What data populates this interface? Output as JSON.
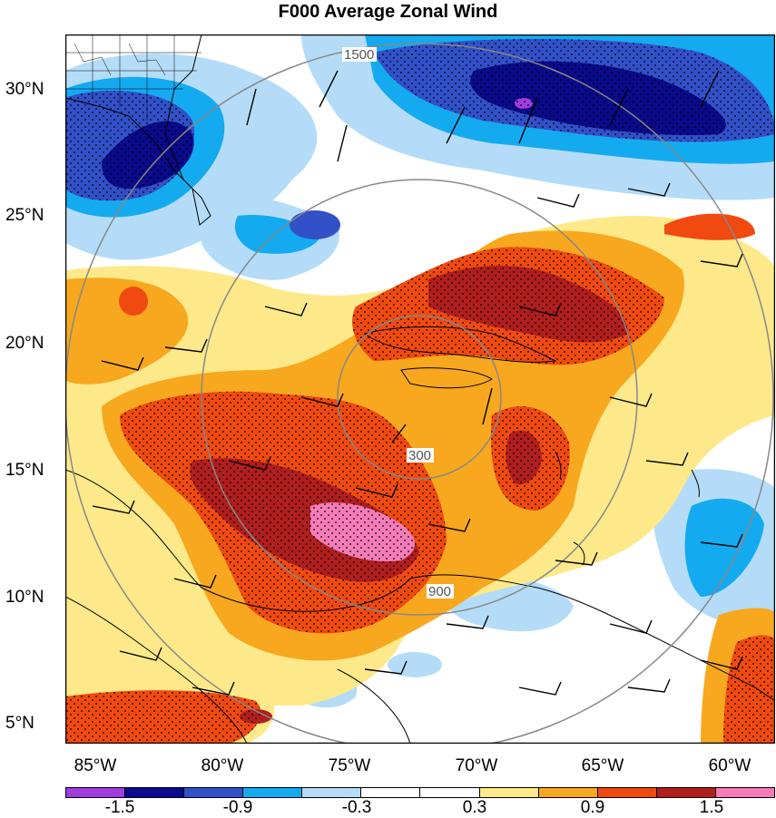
{
  "title": "F000 Average Zonal Wind",
  "lat_labels": [
    "30°N",
    "25°N",
    "20°N",
    "15°N",
    "10°N",
    "5°N"
  ],
  "lon_labels": [
    "85°W",
    "80°W",
    "75°W",
    "70°W",
    "65°W",
    "60°W"
  ],
  "ring_labels": [
    "300",
    "900",
    "1500"
  ],
  "colorbar": {
    "colors": [
      "#a03ce0",
      "#0a0a8c",
      "#3250c8",
      "#14aaf0",
      "#b4dcf8",
      "#ffffff",
      "#ffffff",
      "#fde98a",
      "#f8a81e",
      "#f04a10",
      "#b01e1e",
      "#f57cb8"
    ],
    "labels": [
      "-1.5",
      "-0.9",
      "-0.3",
      "0.3",
      "0.9",
      "1.5"
    ]
  }
}
